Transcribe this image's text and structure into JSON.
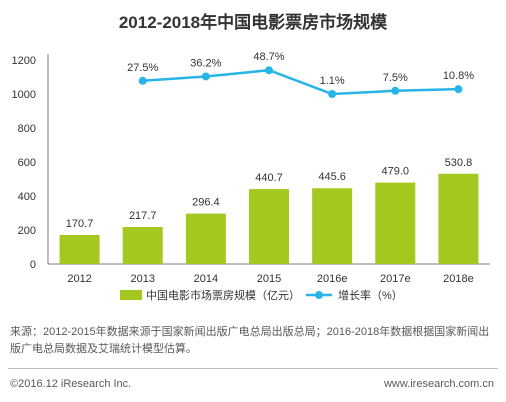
{
  "chart_data": {
    "type": "bar",
    "title": "2012-2018年中国电影票房市场规模",
    "categories": [
      "2012",
      "2013",
      "2014",
      "2015",
      "2016e",
      "2017e",
      "2018e"
    ],
    "series": [
      {
        "name": "中国电影市场票房规模（亿元）",
        "type": "bar",
        "values": [
          170.7,
          217.7,
          296.4,
          440.7,
          445.6,
          479.0,
          530.8
        ],
        "labels": [
          "170.7",
          "217.7",
          "296.4",
          "440.7",
          "445.6",
          "479.0",
          "530.8"
        ],
        "color": "#a3c81f"
      },
      {
        "name": "增长率（%）",
        "type": "line",
        "values": [
          null,
          27.5,
          36.2,
          48.7,
          1.1,
          7.5,
          10.8
        ],
        "labels": [
          "",
          "27.5%",
          "36.2%",
          "48.7%",
          "1.1%",
          "7.5%",
          "10.8%"
        ],
        "color": "#28b4e6"
      }
    ],
    "yticks": [
      "0",
      "200",
      "400",
      "600",
      "800",
      "1000",
      "1200"
    ],
    "ylim": [
      0,
      1200
    ],
    "legend_position": "bottom",
    "grid": false
  },
  "note": "来源：2012-2015年数据来源于国家新闻出版广电总局出版总局；2016-2018年数据根据国家新闻出版广电总局数据及艾瑞统计模型估算。",
  "footer": {
    "copyright": "©2016.12 iResearch Inc.",
    "website": "www.iresearch.com.cn"
  }
}
